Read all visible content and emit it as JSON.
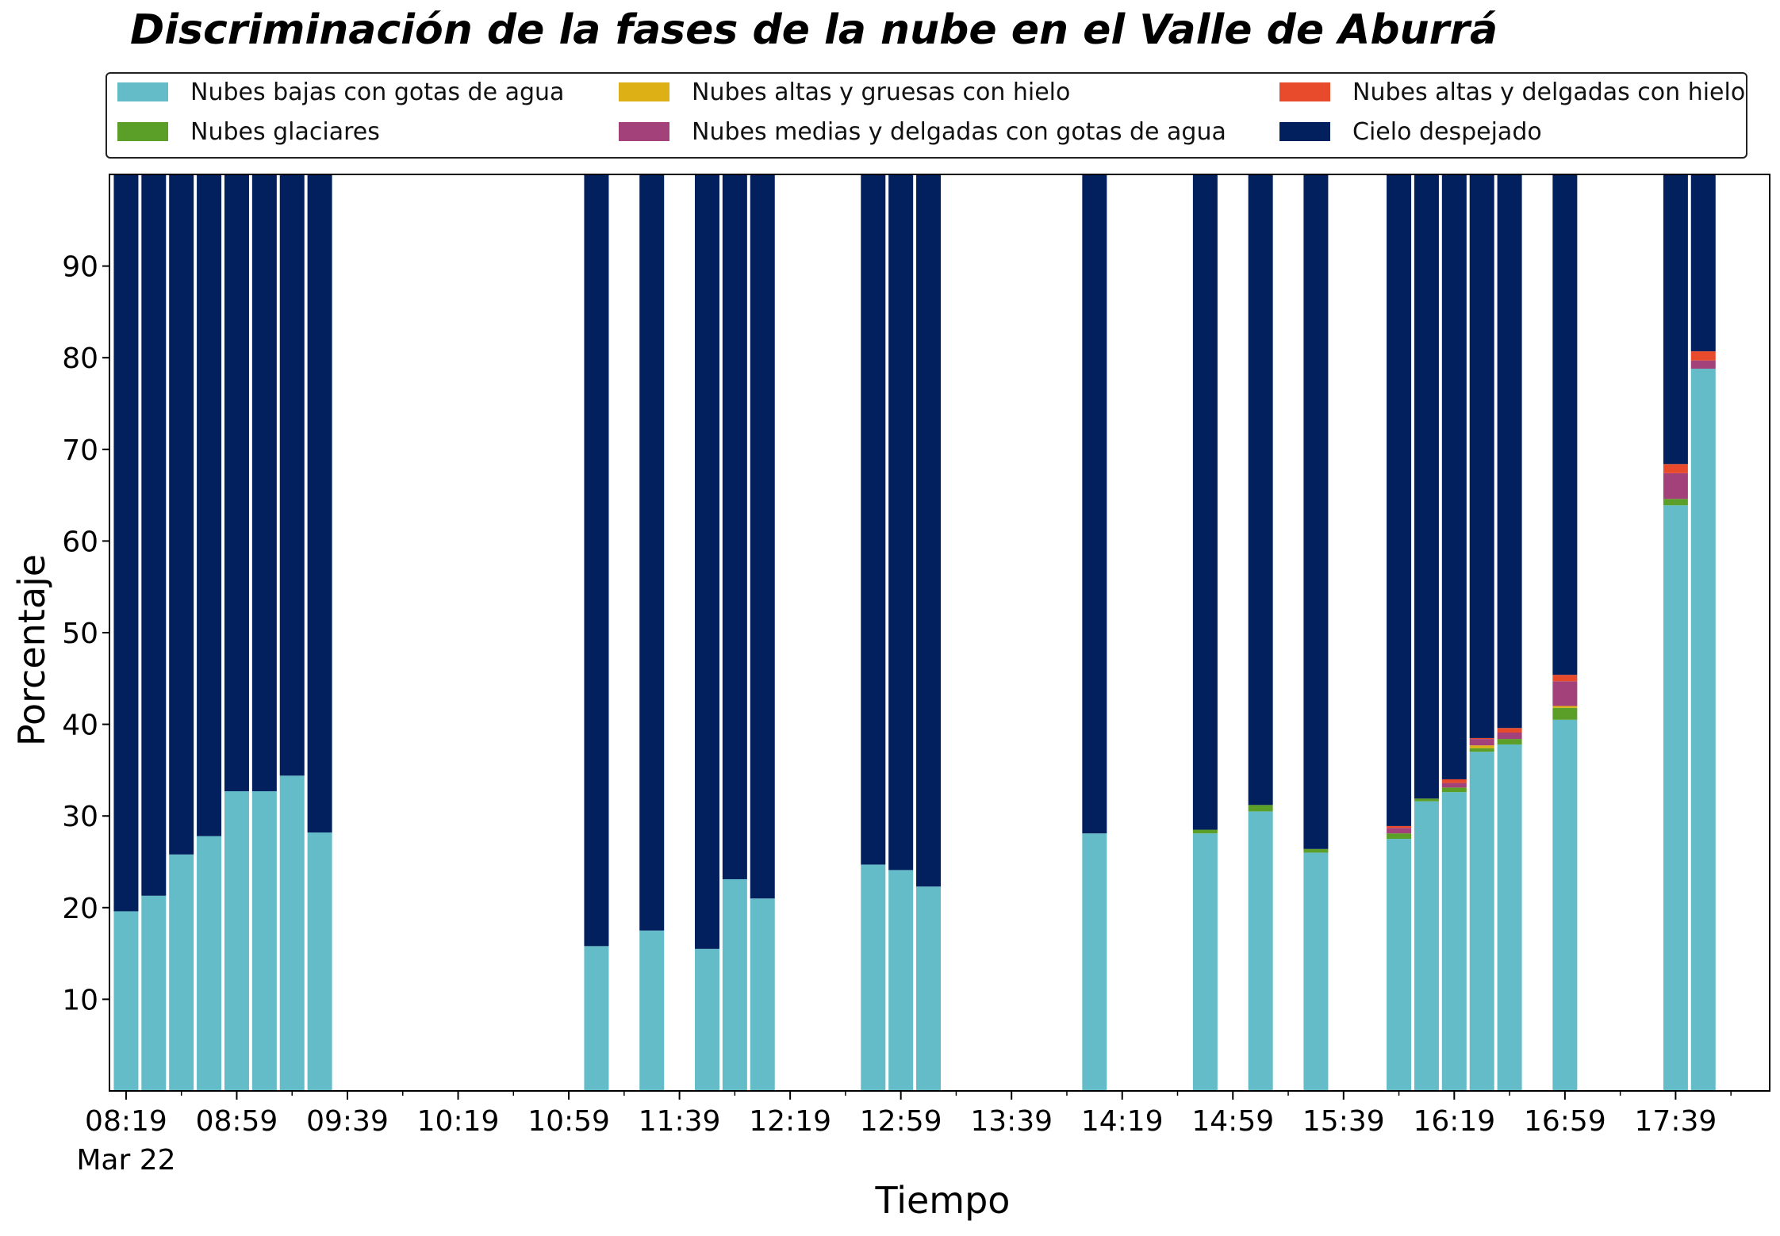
{
  "chart_data": {
    "type": "bar",
    "stacked": true,
    "title": "Discriminación de la fases de la nube en el Valle de Aburrá",
    "xlabel": "Tiempo",
    "ylabel": "Porcentaje",
    "ylim": [
      0,
      100
    ],
    "yticks": [
      10,
      20,
      30,
      40,
      50,
      60,
      70,
      80,
      90
    ],
    "xlim": [
      "08:13",
      "18:13"
    ],
    "xtick_labels": [
      "08:19",
      "08:59",
      "09:39",
      "10:19",
      "10:59",
      "11:39",
      "12:19",
      "12:59",
      "13:39",
      "14:19",
      "14:59",
      "15:39",
      "16:19",
      "16:59",
      "17:39"
    ],
    "xtick_sublabel": "Mar 22",
    "legend_position": "top, 3 columns",
    "categories": [
      "08:19",
      "08:29",
      "08:39",
      "08:49",
      "08:59",
      "09:09",
      "09:19",
      "09:29",
      "11:09",
      "11:29",
      "11:49",
      "11:59",
      "12:09",
      "12:49",
      "12:59",
      "13:09",
      "14:09",
      "14:49",
      "15:09",
      "15:29",
      "15:59",
      "16:09",
      "16:19",
      "16:29",
      "16:39",
      "16:59",
      "17:39",
      "17:49"
    ],
    "series": [
      {
        "name": "Nubes bajas con gotas de agua",
        "color": "#63bcc8",
        "values": [
          19.6,
          21.3,
          25.8,
          27.8,
          32.7,
          32.7,
          34.4,
          28.2,
          15.8,
          17.5,
          15.5,
          23.1,
          21.0,
          24.7,
          24.1,
          22.3,
          28.1,
          28.1,
          30.5,
          26.0,
          27.5,
          31.6,
          32.6,
          37.0,
          37.8,
          40.5,
          63.9,
          78.8
        ]
      },
      {
        "name": "Nubes glaciares",
        "color": "#5b9e28",
        "values": [
          0,
          0,
          0,
          0,
          0,
          0,
          0,
          0,
          0,
          0,
          0,
          0,
          0,
          0,
          0,
          0,
          0,
          0.4,
          0.7,
          0.4,
          0.6,
          0.3,
          0.5,
          0.4,
          0.6,
          1.3,
          0.7,
          0
        ]
      },
      {
        "name": "Nubes altas y gruesas con hielo",
        "color": "#ddb115",
        "values": [
          0,
          0,
          0,
          0,
          0,
          0,
          0,
          0,
          0,
          0,
          0,
          0,
          0,
          0,
          0,
          0,
          0,
          0,
          0,
          0,
          0,
          0,
          0,
          0.3,
          0,
          0.2,
          0,
          0
        ]
      },
      {
        "name": "Nubes medias y delgadas con gotas de agua",
        "color": "#a3427a",
        "values": [
          0,
          0,
          0,
          0,
          0,
          0,
          0,
          0,
          0,
          0,
          0,
          0,
          0,
          0,
          0,
          0,
          0,
          0,
          0,
          0,
          0.6,
          0,
          0.5,
          0.7,
          0.7,
          2.7,
          2.8,
          0.9
        ]
      },
      {
        "name": "Nubes altas y delgadas con hielo",
        "color": "#e84a2c",
        "values": [
          0,
          0,
          0,
          0,
          0,
          0,
          0,
          0,
          0,
          0,
          0,
          0,
          0,
          0,
          0,
          0,
          0,
          0,
          0,
          0,
          0.2,
          0,
          0.4,
          0.1,
          0.5,
          0.7,
          1.0,
          1.0
        ]
      },
      {
        "name": "Cielo despejado",
        "color": "#021f5e",
        "values": [
          80.4,
          78.7,
          74.2,
          72.2,
          67.3,
          67.3,
          65.6,
          71.8,
          84.2,
          82.5,
          84.5,
          76.9,
          79.0,
          75.3,
          75.9,
          77.7,
          71.9,
          71.5,
          68.8,
          73.6,
          71.1,
          68.1,
          66.0,
          61.5,
          60.4,
          54.6,
          31.6,
          19.3
        ]
      }
    ]
  }
}
